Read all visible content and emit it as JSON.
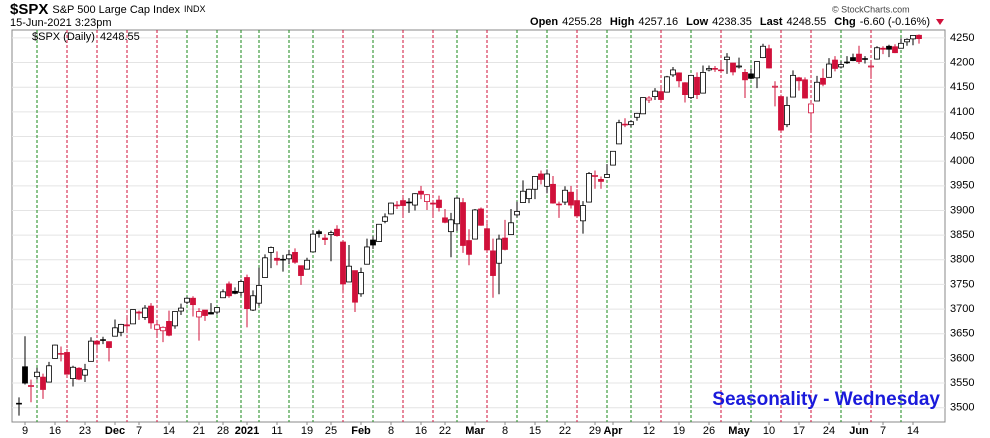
{
  "header": {
    "symbol": "$SPX",
    "name": "S&P 500 Large Cap Index",
    "exchange": "INDX",
    "datetime": "15-Jun-2021 3:23pm",
    "quote": [
      {
        "label": "Open",
        "value": "4255.28"
      },
      {
        "label": "High",
        "value": "4257.16"
      },
      {
        "label": "Low",
        "value": "4238.35"
      },
      {
        "label": "Last",
        "value": "4248.55"
      },
      {
        "label": "Chg",
        "value": "-6.60 (-0.16%)"
      }
    ],
    "copyright": "© StockCharts.com"
  },
  "chart_data": {
    "type": "candlestick",
    "legend": {
      "label": "$SPX (Daily)",
      "value": "4248.55"
    },
    "annotation": "Seasonality - Wednesday",
    "up_color": "#000000",
    "down_color": "#d0103a",
    "wed_up_color": "#1a8a1a",
    "wed_down_color": "#d0103a",
    "open": [
      3508,
      3583,
      3543,
      3563,
      3562,
      3552,
      3600,
      3610,
      3612,
      3559,
      3580,
      3566,
      3594,
      3635,
      3638,
      3634,
      3645,
      3653,
      3668,
      3670,
      3694,
      3683,
      3706,
      3659,
      3656,
      3675,
      3666,
      3696,
      3714,
      3722,
      3684,
      3698,
      3693,
      3694,
      3723,
      3751,
      3736,
      3734,
      3764,
      3698,
      3712,
      3764,
      3815,
      3803,
      3801,
      3802,
      3815,
      3788,
      3781,
      3816,
      3857,
      3844,
      3851,
      3862,
      3836,
      3755,
      3778,
      3731,
      3791,
      3840,
      3837,
      3878,
      3893,
      3910,
      3920,
      3917,
      3911,
      3939,
      3918,
      3915,
      3921,
      3885,
      3857,
      3873,
      3916,
      3839,
      3842,
      3903,
      3863,
      3818,
      3793,
      3844,
      3851,
      3891,
      3916,
      3924,
      3943,
      3974,
      3949,
      3953,
      3913,
      3917,
      3937,
      3920,
      3879,
      3917,
      3969,
      3963,
      3967,
      3992,
      4035,
      4075,
      4074,
      4089,
      4096,
      4124,
      4131,
      4141,
      4140,
      4175,
      4179,
      4159,
      4129,
      4170,
      4138,
      4185,
      4188,
      4185,
      4206,
      4199,
      4191,
      4180,
      4177,
      4169,
      4210,
      4228,
      4150,
      4131,
      4074,
      4130,
      4169,
      4165,
      4098,
      4122,
      4168,
      4170,
      4205,
      4191,
      4201,
      4210,
      4217,
      4207,
      4191,
      4207,
      4229,
      4233,
      4232,
      4229,
      4242,
      4248,
      4255.28
    ],
    "high": [
      3521,
      3645,
      3557,
      3581,
      3569,
      3593,
      3628,
      3624,
      3619,
      3585,
      3582,
      3589,
      3643,
      3637,
      3644,
      3634,
      3679,
      3670,
      3682,
      3699,
      3697,
      3708,
      3712,
      3678,
      3665,
      3697,
      3695,
      3711,
      3725,
      3726,
      3702,
      3698,
      3712,
      3703,
      3740,
      3756,
      3744,
      3760,
      3770,
      3738,
      3784,
      3811,
      3827,
      3817,
      3810,
      3820,
      3823,
      3788,
      3804,
      3860,
      3861,
      3852,
      3859,
      3870,
      3836,
      3830,
      3778,
      3784,
      3843,
      3848,
      3872,
      3894,
      3916,
      3919,
      3931,
      3925,
      3935,
      3950,
      3933,
      3921,
      3930,
      3903,
      3895,
      3928,
      3925,
      3862,
      3903,
      3906,
      3874,
      3843,
      3851,
      3881,
      3903,
      3918,
      3961,
      3944,
      3970,
      3981,
      3983,
      3970,
      3918,
      3949,
      3950,
      3943,
      3919,
      3978,
      3981,
      3969,
      3994,
      4020,
      4084,
      4087,
      4083,
      4098,
      4129,
      4132,
      4148,
      4151,
      4173,
      4191,
      4180,
      4160,
      4175,
      4180,
      4194,
      4194,
      4193,
      4201,
      4219,
      4199,
      4210,
      4187,
      4188,
      4202,
      4238,
      4236,
      4162,
      4135,
      4131,
      4184,
      4171,
      4170,
      4117,
      4173,
      4188,
      4209,
      4213,
      4203,
      4213,
      4218,
      4234,
      4213,
      4199,
      4233,
      4233,
      4236,
      4237,
      4249,
      4249,
      4255,
      4257.16
    ],
    "low": [
      3484,
      3547,
      3511,
      3557,
      3518,
      3552,
      3600,
      3594,
      3567,
      3543,
      3556,
      3552,
      3594,
      3617,
      3629,
      3594,
      3645,
      3645,
      3657,
      3670,
      3678,
      3678,
      3660,
      3645,
      3633,
      3645,
      3660,
      3688,
      3710,
      3685,
      3636,
      3676,
      3689,
      3689,
      3723,
      3723,
      3730,
      3726,
      3663,
      3696,
      3706,
      3764,
      3783,
      3789,
      3776,
      3791,
      3792,
      3749,
      3781,
      3816,
      3845,
      3830,
      3797,
      3847,
      3732,
      3755,
      3694,
      3725,
      3791,
      3822,
      3836,
      3874,
      3892,
      3903,
      3890,
      3895,
      3900,
      3923,
      3901,
      3885,
      3898,
      3874,
      3805,
      3858,
      3814,
      3789,
      3842,
      3869,
      3818,
      3723,
      3730,
      3819,
      3851,
      3886,
      3916,
      3915,
      3923,
      3953,
      3935,
      3914,
      3885,
      3911,
      3904,
      3889,
      3853,
      3917,
      3944,
      3944,
      3967,
      3992,
      4035,
      4069,
      4069,
      4082,
      4096,
      4118,
      4124,
      4121,
      4140,
      4171,
      4150,
      4119,
      4126,
      4126,
      4138,
      4182,
      4181,
      4181,
      4177,
      4174,
      4188,
      4128,
      4166,
      4148,
      4209,
      4188,
      4111,
      4057,
      4069,
      4130,
      4143,
      4127,
      4062,
      4122,
      4152,
      4170,
      4182,
      4188,
      4197,
      4203,
      4197,
      4198,
      4167,
      4206,
      4217,
      4211,
      4219,
      4229,
      4234,
      4235,
      4238.35
    ],
    "close": [
      3509,
      3550,
      3545,
      3572,
      3537,
      3585,
      3627,
      3610,
      3568,
      3582,
      3558,
      3577,
      3635,
      3629,
      3638,
      3622,
      3662,
      3669,
      3666,
      3699,
      3692,
      3702,
      3672,
      3668,
      3663,
      3647,
      3695,
      3702,
      3722,
      3709,
      3695,
      3687,
      3690,
      3703,
      3735,
      3727,
      3732,
      3756,
      3701,
      3727,
      3748,
      3804,
      3825,
      3799,
      3801,
      3810,
      3795,
      3768,
      3799,
      3852,
      3853,
      3841,
      3855,
      3849,
      3751,
      3787,
      3714,
      3774,
      3826,
      3830,
      3872,
      3887,
      3915,
      3911,
      3910,
      3916,
      3934,
      3933,
      3932,
      3913,
      3906,
      3876,
      3881,
      3925,
      3829,
      3811,
      3901,
      3870,
      3820,
      3768,
      3842,
      3821,
      3875,
      3898,
      3939,
      3943,
      3969,
      3963,
      3974,
      3915,
      3913,
      3941,
      3911,
      3889,
      3910,
      3975,
      3971,
      3959,
      3973,
      4020,
      4078,
      4074,
      4080,
      4097,
      4129,
      4128,
      4142,
      4125,
      4171,
      4185,
      4163,
      4135,
      4174,
      4135,
      4180,
      4188,
      4187,
      4184,
      4211,
      4181,
      4193,
      4165,
      4168,
      4202,
      4233,
      4189,
      4152,
      4063,
      4113,
      4174,
      4163,
      4128,
      4116,
      4160,
      4156,
      4197,
      4188,
      4196,
      4201,
      4204,
      4202,
      4208,
      4193,
      4230,
      4227,
      4227,
      4220,
      4239,
      4247,
      4255,
      4248.55
    ],
    "wednesdays": [
      3,
      8,
      13,
      18,
      23,
      28,
      33,
      37,
      40,
      45,
      49,
      54,
      59,
      64,
      69,
      73,
      78,
      83,
      88,
      93,
      98,
      102,
      107,
      112,
      117,
      122,
      127,
      132,
      137,
      142,
      147
    ],
    "xticks": [
      {
        "value": 1,
        "label": "9"
      },
      {
        "value": 6,
        "label": "16"
      },
      {
        "value": 11,
        "label": "23"
      },
      {
        "value": 16,
        "label": "Dec"
      },
      {
        "value": 20,
        "label": "7"
      },
      {
        "value": 25,
        "label": "14"
      },
      {
        "value": 30,
        "label": "21"
      },
      {
        "value": 34,
        "label": "28"
      },
      {
        "value": 38,
        "label": "2021"
      },
      {
        "value": 43,
        "label": "11"
      },
      {
        "value": 48,
        "label": "19"
      },
      {
        "value": 52,
        "label": "25"
      },
      {
        "value": 57,
        "label": "Feb"
      },
      {
        "value": 62,
        "label": "8"
      },
      {
        "value": 67,
        "label": "16"
      },
      {
        "value": 71,
        "label": "22"
      },
      {
        "value": 76,
        "label": "Mar"
      },
      {
        "value": 81,
        "label": "8"
      },
      {
        "value": 86,
        "label": "15"
      },
      {
        "value": 91,
        "label": "22"
      },
      {
        "value": 96,
        "label": "29"
      },
      {
        "value": 99,
        "label": "Apr"
      },
      {
        "value": 105,
        "label": "12"
      },
      {
        "value": 110,
        "label": "19"
      },
      {
        "value": 115,
        "label": "26"
      },
      {
        "value": 120,
        "label": "May"
      },
      {
        "value": 125,
        "label": "10"
      },
      {
        "value": 130,
        "label": "17"
      },
      {
        "value": 135,
        "label": "24"
      },
      {
        "value": 140,
        "label": "Jun"
      },
      {
        "value": 144,
        "label": "7"
      },
      {
        "value": 149,
        "label": "14"
      }
    ],
    "ylim": [
      3471,
      4266
    ],
    "yticks": [
      3500,
      3550,
      3600,
      3650,
      3700,
      3750,
      3800,
      3850,
      3900,
      3950,
      4000,
      4050,
      4100,
      4150,
      4200,
      4250
    ],
    "grid": true
  }
}
